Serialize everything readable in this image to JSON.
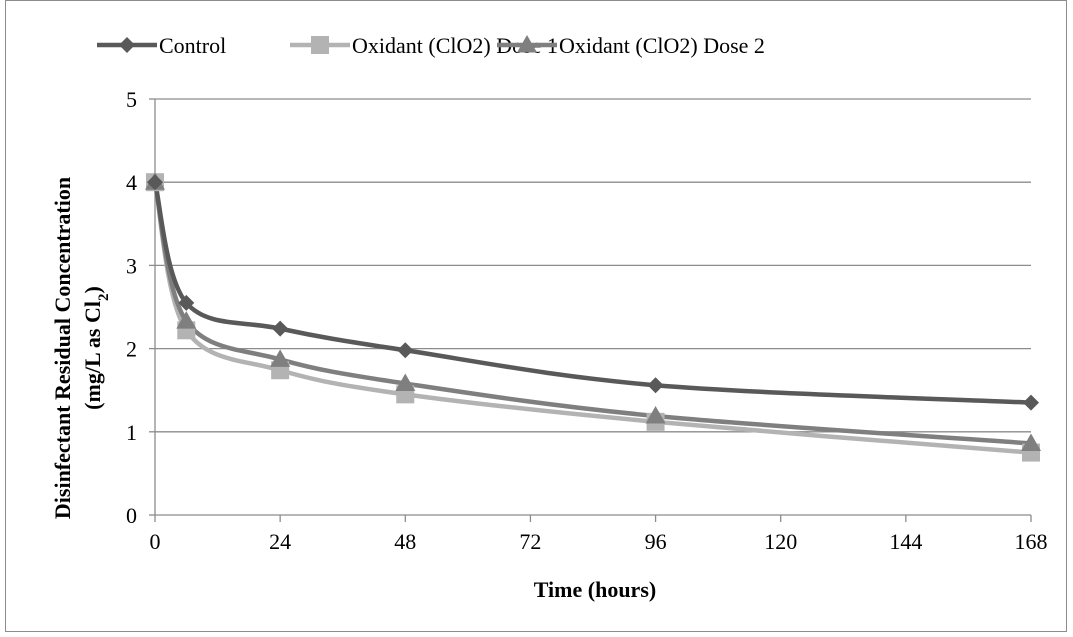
{
  "chart_data": {
    "type": "line",
    "xlabel": "Time (hours)",
    "ylabel_line1": "Disinfectant Residual Concentration",
    "ylabel_line2_prefix": "(mg/L as Cl",
    "ylabel_line2_subscript": "2",
    "ylabel_line2_suffix": ")",
    "xlim": [
      0,
      168
    ],
    "ylim": [
      0,
      5
    ],
    "x_ticks": [
      0,
      24,
      48,
      72,
      96,
      120,
      144,
      168
    ],
    "y_ticks": [
      0,
      1,
      2,
      3,
      4,
      5
    ],
    "grid": "horizontal",
    "legend_position": "top",
    "series": [
      {
        "name": "Control",
        "color": "#595959",
        "marker": "diamond",
        "x": [
          0,
          6,
          24,
          48,
          96,
          168
        ],
        "y": [
          4.0,
          2.55,
          2.24,
          1.98,
          1.56,
          1.35
        ]
      },
      {
        "name": "Oxidant (ClO2) Dose 1",
        "color": "#b3b3b3",
        "marker": "square",
        "x": [
          0,
          6,
          24,
          48,
          96,
          168
        ],
        "y": [
          4.0,
          2.22,
          1.74,
          1.45,
          1.12,
          0.75
        ]
      },
      {
        "name": "Oxidant (ClO2) Dose 2",
        "color": "#7f7f7f",
        "marker": "triangle",
        "x": [
          0,
          6,
          24,
          48,
          96,
          168
        ],
        "y": [
          4.0,
          2.33,
          1.87,
          1.58,
          1.19,
          0.86
        ]
      }
    ]
  }
}
